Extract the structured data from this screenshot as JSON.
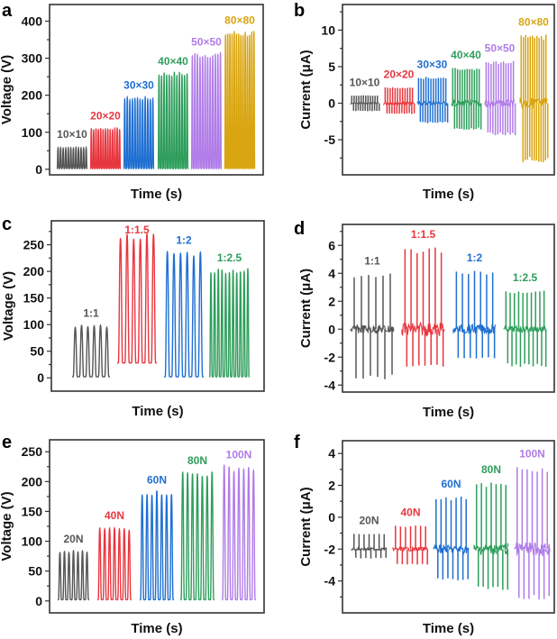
{
  "figure": {
    "description": "Triboelectric nanogenerator output: voltage and current vs. time for different areas, ratios, and forces"
  },
  "chart_data": [
    {
      "panel": "a",
      "type": "line",
      "title": "",
      "xlabel": "Time (s)",
      "ylabel": "Voltage (V)",
      "ylim": [
        -15,
        445
      ],
      "yticks": [
        0,
        100,
        200,
        300,
        400
      ],
      "ytick_labels": [
        "0",
        "100",
        "200",
        "300",
        "400"
      ],
      "signal": "voltage",
      "groups": [
        {
          "label": "10×10",
          "color": "#555555",
          "peak": 60,
          "min": 2,
          "pulses": 12
        },
        {
          "label": "20×20",
          "color": "#e8363f",
          "peak": 110,
          "min": 2,
          "pulses": 13
        },
        {
          "label": "30×30",
          "color": "#1f6fd1",
          "peak": 193,
          "min": 2,
          "pulses": 12
        },
        {
          "label": "40×40",
          "color": "#2e9e5b",
          "peak": 258,
          "min": 2,
          "pulses": 12
        },
        {
          "label": "50×50",
          "color": "#b07ce8",
          "peak": 310,
          "min": 2,
          "pulses": 12
        },
        {
          "label": "80×80",
          "color": "#d9a510",
          "peak": 368,
          "min": 2,
          "pulses": 14
        }
      ]
    },
    {
      "panel": "b",
      "type": "line",
      "title": "",
      "xlabel": "Time (s)",
      "ylabel": "Current (μA)",
      "ylim": [
        -9.8,
        13.5
      ],
      "yticks": [
        -5,
        0,
        5,
        10
      ],
      "ytick_labels": [
        "-5",
        "0",
        "5",
        "10"
      ],
      "signal": "current",
      "groups": [
        {
          "label": "10×10",
          "color": "#555555",
          "peak": 1.1,
          "trough": -1.1,
          "baseline": 0,
          "pulses": 12
        },
        {
          "label": "20×20",
          "color": "#e8363f",
          "peak": 2.2,
          "trough": -1.5,
          "baseline": 0,
          "pulses": 12
        },
        {
          "label": "30×30",
          "color": "#1f6fd1",
          "peak": 3.6,
          "trough": -2.8,
          "baseline": 0,
          "pulses": 12
        },
        {
          "label": "40×40",
          "color": "#2e9e5b",
          "peak": 4.9,
          "trough": -3.7,
          "baseline": 0,
          "pulses": 12
        },
        {
          "label": "50×50",
          "color": "#b07ce8",
          "peak": 5.8,
          "trough": -4.4,
          "baseline": 0,
          "pulses": 12
        },
        {
          "label": "80×80",
          "color": "#d9a510",
          "peak": 9.4,
          "trough": -8.1,
          "baseline": 0,
          "pulses": 12
        }
      ]
    },
    {
      "panel": "c",
      "type": "line",
      "title": "",
      "xlabel": "Time (s)",
      "ylabel": "Voltage (V)",
      "ylim": [
        -25,
        295
      ],
      "yticks": [
        0,
        50,
        100,
        150,
        200,
        250
      ],
      "ytick_labels": [
        "0",
        "50",
        "100",
        "150",
        "200",
        "250"
      ],
      "signal": "voltage",
      "groups": [
        {
          "label": "1:1",
          "color": "#555555",
          "peak": 98,
          "min": 2,
          "pulses": 6
        },
        {
          "label": "1:1.5",
          "color": "#e8363f",
          "peak": 267,
          "min": 28,
          "pulses": 6
        },
        {
          "label": "1:2",
          "color": "#1f6fd1",
          "peak": 235,
          "min": 2,
          "pulses": 6
        },
        {
          "label": "1:2.5",
          "color": "#2e9e5b",
          "peak": 202,
          "min": 2,
          "pulses": 11
        }
      ]
    },
    {
      "panel": "d",
      "type": "line",
      "title": "",
      "xlabel": "Time (s)",
      "ylabel": "Current (μA)",
      "ylim": [
        -4.5,
        7.5
      ],
      "yticks": [
        -4,
        -2,
        0,
        2,
        4,
        6
      ],
      "ytick_labels": [
        "-4",
        "-2",
        "0",
        "2",
        "4",
        "6"
      ],
      "signal": "current",
      "groups": [
        {
          "label": "1:1",
          "color": "#555555",
          "peak": 4.0,
          "trough": -3.6,
          "baseline": 0,
          "pulses": 6
        },
        {
          "label": "1:1.5",
          "color": "#e8363f",
          "peak": 5.9,
          "trough": -2.7,
          "baseline": 0,
          "pulses": 7
        },
        {
          "label": "1:2",
          "color": "#1f6fd1",
          "peak": 4.2,
          "trough": -2.1,
          "baseline": 0,
          "pulses": 7
        },
        {
          "label": "1:2.5",
          "color": "#2e9e5b",
          "peak": 2.8,
          "trough": -2.7,
          "baseline": 0,
          "pulses": 10
        }
      ]
    },
    {
      "panel": "e",
      "type": "line",
      "title": "",
      "xlabel": "Time (s)",
      "ylabel": "Voltage (V)",
      "ylim": [
        -20,
        270
      ],
      "yticks": [
        0,
        50,
        100,
        150,
        200,
        250
      ],
      "ytick_labels": [
        "0",
        "50",
        "100",
        "150",
        "200",
        "250"
      ],
      "signal": "voltage",
      "groups": [
        {
          "label": "20N",
          "color": "#555555",
          "peak": 83,
          "min": 2,
          "pulses": 7
        },
        {
          "label": "40N",
          "color": "#e8363f",
          "peak": 122,
          "min": 2,
          "pulses": 7
        },
        {
          "label": "60N",
          "color": "#1f6fd1",
          "peak": 182,
          "min": 2,
          "pulses": 7
        },
        {
          "label": "80N",
          "color": "#2e9e5b",
          "peak": 214,
          "min": 2,
          "pulses": 7
        },
        {
          "label": "100N",
          "color": "#b07ce8",
          "peak": 224,
          "min": 2,
          "pulses": 7
        }
      ]
    },
    {
      "panel": "f",
      "type": "line",
      "title": "",
      "xlabel": "Time (s)",
      "ylabel": "Current (μA)",
      "ylim": [
        -6,
        4.8
      ],
      "yticks": [
        -4,
        -2,
        0,
        2,
        4
      ],
      "ytick_labels": [
        "-4",
        "-2",
        "0",
        "2",
        "4"
      ],
      "signal": "current",
      "groups": [
        {
          "label": "20N",
          "color": "#555555",
          "peak": -1.0,
          "trough": -2.6,
          "baseline": -2.0,
          "pulses": 7
        },
        {
          "label": "40N",
          "color": "#e8363f",
          "peak": -0.5,
          "trough": -3.0,
          "baseline": -2.0,
          "pulses": 7
        },
        {
          "label": "60N",
          "color": "#1f6fd1",
          "peak": 1.3,
          "trough": -4.0,
          "baseline": -2.0,
          "pulses": 7
        },
        {
          "label": "80N",
          "color": "#2e9e5b",
          "peak": 2.2,
          "trough": -4.6,
          "baseline": -2.0,
          "pulses": 7
        },
        {
          "label": "100N",
          "color": "#b07ce8",
          "peak": 3.2,
          "trough": -5.2,
          "baseline": -2.0,
          "pulses": 7
        }
      ]
    }
  ]
}
